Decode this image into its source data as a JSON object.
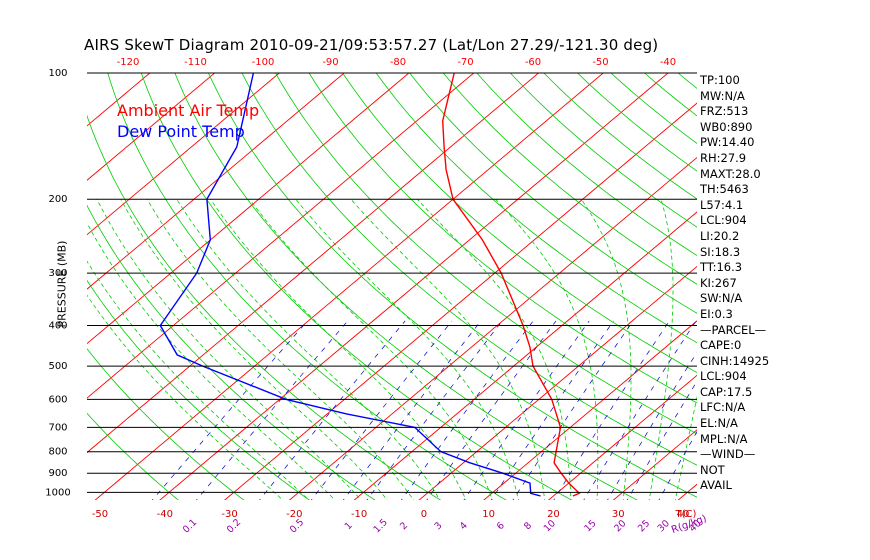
{
  "title": "AIRS SkewT Diagram 2010-09-21/09:53:57.27 (Lat/Lon 27.29/-121.30 deg)",
  "colors": {
    "temperature": "#ff0000",
    "dewpoint": "#0000ff",
    "isotherm": "#ff0000",
    "dry_adiabat": "#00cc00",
    "moist_adiabat": "#00cc00",
    "mixing_ratio": "#0000cc",
    "isobar": "#000000",
    "top_ticks": "#ff0000",
    "bottom_ticks": "#cc0000",
    "mix_labels": "#9900aa"
  },
  "chart_data": {
    "type": "skew-t",
    "title": "AIRS SkewT Diagram 2010-09-21/09:53:57.27 (Lat/Lon 27.29/-121.30 deg)",
    "ylabel": "PRESSURE (MB)",
    "xlabel": "T(C)",
    "mixing_ratio_unit": "R(g/kg)",
    "pressure_range": [
      1050,
      100
    ],
    "temperature_range_bottom": [
      -50,
      40
    ],
    "pressure_levels": [
      100,
      200,
      300,
      400,
      500,
      600,
      700,
      800,
      900,
      1000
    ],
    "top_temperature_ticks": [
      -120,
      -110,
      -100,
      -90,
      -80,
      -70,
      -60,
      -50,
      -40
    ],
    "bottom_temperature_ticks": [
      -50,
      -40,
      -30,
      -20,
      -10,
      0,
      10,
      20,
      30,
      40
    ],
    "mixing_ratio_labels": [
      "0.1",
      "0.2",
      "0.5",
      "1",
      "1.5",
      "2",
      "3",
      "4",
      "6",
      "8",
      "10",
      "15",
      "20",
      "25",
      "30",
      "40"
    ],
    "mixing_ratio_values": [
      0.1,
      0.2,
      0.5,
      1,
      1.5,
      2,
      3,
      4,
      6,
      8,
      10,
      15,
      20,
      25,
      30,
      40
    ],
    "legend": [
      {
        "name": "Ambient Air Temp",
        "color": "#ff0000"
      },
      {
        "name": "Dew Point Temp",
        "color": "#0000ff"
      }
    ],
    "series": [
      {
        "name": "Ambient Air Temp",
        "points": [
          {
            "p": 1020,
            "t": 23.0
          },
          {
            "p": 1005,
            "t": 23.5
          },
          {
            "p": 950,
            "t": 20.0
          },
          {
            "p": 900,
            "t": 17.0
          },
          {
            "p": 850,
            "t": 14.0
          },
          {
            "p": 700,
            "t": 8.5
          },
          {
            "p": 600,
            "t": 2.0
          },
          {
            "p": 500,
            "t": -7.0
          },
          {
            "p": 450,
            "t": -11.0
          },
          {
            "p": 400,
            "t": -16.0
          },
          {
            "p": 300,
            "t": -29.0
          },
          {
            "p": 250,
            "t": -38.0
          },
          {
            "p": 200,
            "t": -50.0
          },
          {
            "p": 170,
            "t": -56.5
          },
          {
            "p": 150,
            "t": -61.0
          },
          {
            "p": 130,
            "t": -66.0
          },
          {
            "p": 100,
            "t": -73.0
          }
        ]
      },
      {
        "name": "Dew Point Temp",
        "points": [
          {
            "p": 1020,
            "t": 18.0
          },
          {
            "p": 1005,
            "t": 16.0
          },
          {
            "p": 950,
            "t": 14.0
          },
          {
            "p": 900,
            "t": 8.0
          },
          {
            "p": 850,
            "t": 1.0
          },
          {
            "p": 800,
            "t": -5.5
          },
          {
            "p": 700,
            "t": -14.0
          },
          {
            "p": 650,
            "t": -27.0
          },
          {
            "p": 600,
            "t": -39.0
          },
          {
            "p": 500,
            "t": -58.0
          },
          {
            "p": 470,
            "t": -64.0
          },
          {
            "p": 400,
            "t": -72.0
          },
          {
            "p": 300,
            "t": -76.0
          },
          {
            "p": 250,
            "t": -80.0
          },
          {
            "p": 200,
            "t": -88.0
          },
          {
            "p": 150,
            "t": -93.0
          },
          {
            "p": 100,
            "t": -104.0
          }
        ]
      }
    ],
    "indices": [
      "TP:100",
      "MW:N/A",
      "FRZ:513",
      "WB0:890",
      "PW:14.40",
      "RH:27.9",
      "MAXT:28.0",
      "TH:5463",
      "L57:4.1",
      "LCL:904",
      "LI:20.2",
      "SI:18.3",
      "TT:16.3",
      "KI:267",
      "SW:N/A",
      "EI:0.3",
      "—PARCEL—",
      "CAPE:0",
      "CINH:14925",
      "LCL:904",
      "CAP:17.5",
      "LFC:N/A",
      "EL:N/A",
      "MPL:N/A",
      "—WIND—",
      "NOT",
      "AVAIL"
    ]
  }
}
